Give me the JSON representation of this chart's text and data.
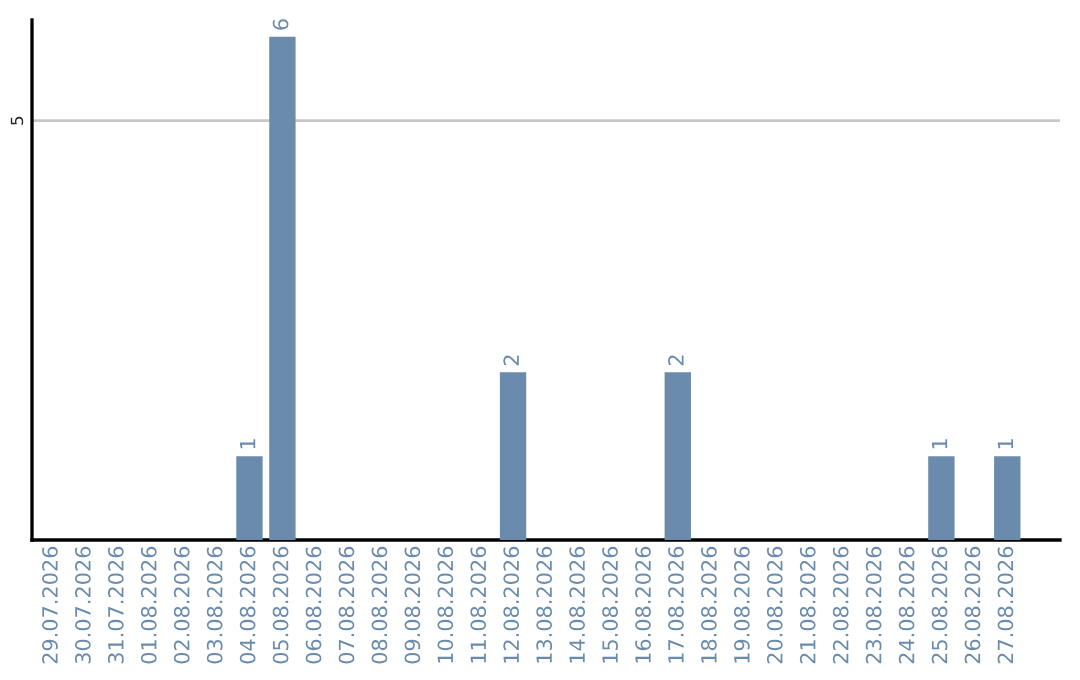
{
  "chart_data": {
    "type": "bar",
    "categories": [
      "29.07.2026",
      "30.07.2026",
      "31.07.2026",
      "01.08.2026",
      "02.08.2026",
      "03.08.2026",
      "04.08.2026",
      "05.08.2026",
      "06.08.2026",
      "07.08.2026",
      "08.08.2026",
      "09.08.2026",
      "10.08.2026",
      "11.08.2026",
      "12.08.2026",
      "13.08.2026",
      "14.08.2026",
      "15.08.2026",
      "16.08.2026",
      "17.08.2026",
      "18.08.2026",
      "19.08.2026",
      "20.08.2026",
      "21.08.2026",
      "22.08.2026",
      "23.08.2026",
      "24.08.2026",
      "25.08.2026",
      "26.08.2026",
      "27.08.2026"
    ],
    "values": [
      0,
      0,
      0,
      0,
      0,
      0,
      1,
      6,
      0,
      0,
      0,
      0,
      0,
      0,
      2,
      0,
      0,
      0,
      0,
      2,
      0,
      0,
      0,
      0,
      0,
      0,
      0,
      1,
      0,
      1
    ],
    "value_labels": [
      null,
      null,
      null,
      null,
      null,
      null,
      "1",
      "6",
      null,
      null,
      null,
      null,
      null,
      null,
      "2",
      null,
      null,
      null,
      null,
      "2",
      null,
      null,
      null,
      null,
      null,
      null,
      null,
      "1",
      null,
      "1"
    ],
    "color": "#6a8bab",
    "ylim": [
      0,
      6.2
    ],
    "yticks": [
      5
    ],
    "grid": "y"
  }
}
